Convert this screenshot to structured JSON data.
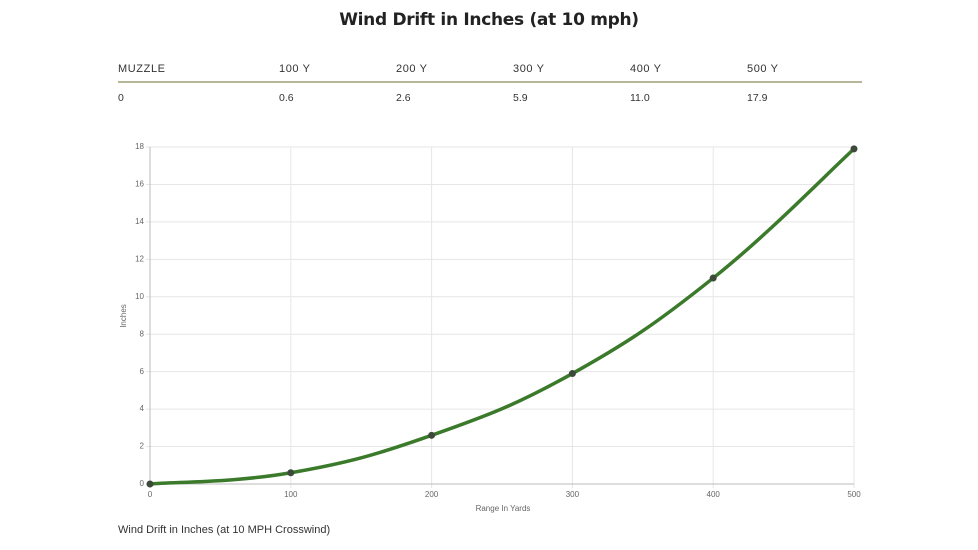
{
  "title": "Wind Drift in Inches (at 10 mph)",
  "table": {
    "headers": [
      "MUZZLE",
      "100 Y",
      "200 Y",
      "300 Y",
      "400 Y",
      "500 Y"
    ],
    "rows": [
      [
        "0",
        "0.6",
        "2.6",
        "5.9",
        "11.0",
        "17.9"
      ]
    ]
  },
  "chart_data": {
    "type": "line",
    "xlabel": "Range In Yards",
    "ylabel": "Inches",
    "x": [
      0,
      100,
      200,
      300,
      400,
      500
    ],
    "values": [
      0,
      0.6,
      2.6,
      5.9,
      11.0,
      17.9
    ],
    "color": "#3a7a2a",
    "marker_color": "#3d4a3a",
    "xlim": [
      0,
      500
    ],
    "ylim": [
      0,
      18
    ],
    "xticks": [
      0,
      100,
      200,
      300,
      400,
      500
    ],
    "yticks": [
      0,
      2,
      4,
      6,
      8,
      10,
      12,
      14,
      16,
      18
    ],
    "grid": true
  },
  "caption": "Wind Drift in Inches (at 10 MPH Crosswind)"
}
